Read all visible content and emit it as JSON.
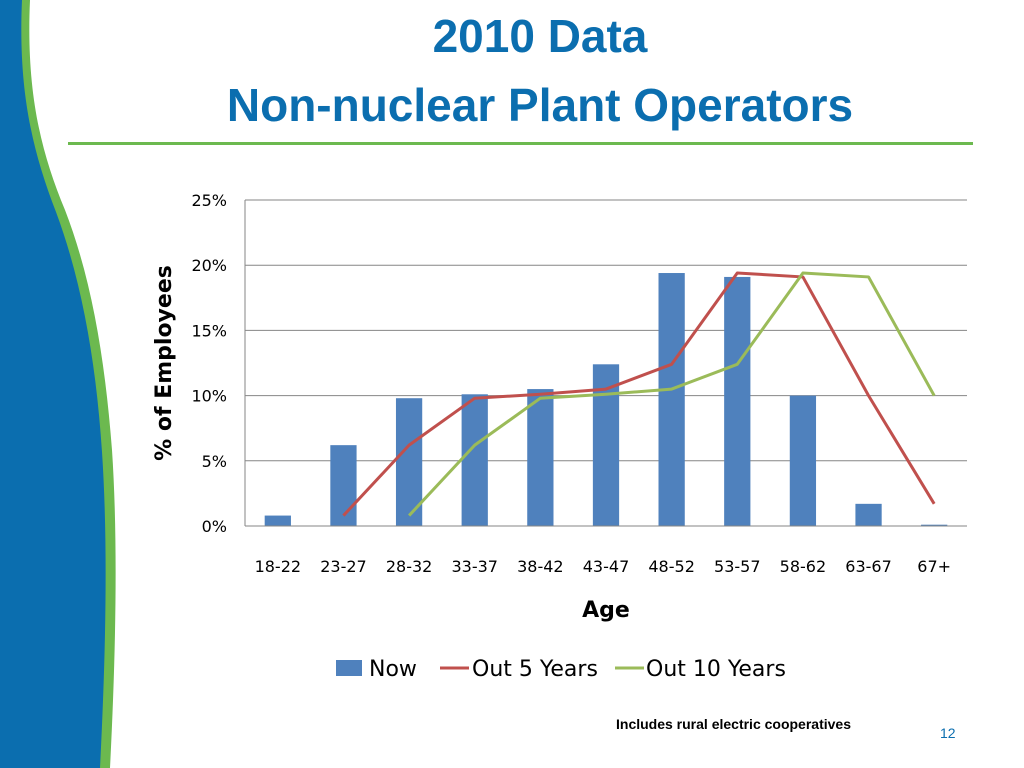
{
  "slide": {
    "title_line1": "2010 Data",
    "title_line2": "Non-nuclear Plant Operators",
    "footnote": "Includes rural electric cooperatives",
    "page_number": "12",
    "colors": {
      "title": "#0B6EAF",
      "rule": "#6CB94F",
      "side_blue": "#0B6EAF",
      "side_green": "#6CB94F"
    }
  },
  "chart_data": {
    "type": "bar",
    "title": "",
    "xlabel": "Age",
    "ylabel": "% of Employees",
    "categories": [
      "18-22",
      "23-27",
      "28-32",
      "33-37",
      "38-42",
      "43-47",
      "48-52",
      "53-57",
      "58-62",
      "63-67",
      "67+"
    ],
    "ylim": [
      0,
      25
    ],
    "yticks": [
      "0%",
      "5%",
      "10%",
      "15%",
      "20%",
      "25%"
    ],
    "grid": true,
    "legend_position": "bottom",
    "series": [
      {
        "name": "Now",
        "type": "bar",
        "color": "#4F81BD",
        "values": [
          0.8,
          6.2,
          9.8,
          10.1,
          10.5,
          12.4,
          19.4,
          19.1,
          10.0,
          1.7,
          0.1
        ]
      },
      {
        "name": "Out 5 Years",
        "type": "line",
        "color": "#C0504D",
        "values": [
          null,
          0.8,
          6.2,
          9.8,
          10.1,
          10.5,
          12.4,
          19.4,
          19.1,
          10.0,
          1.7
        ]
      },
      {
        "name": "Out 10 Years",
        "type": "line",
        "color": "#9BBB59",
        "values": [
          null,
          null,
          0.8,
          6.2,
          9.8,
          10.1,
          10.5,
          12.4,
          19.4,
          19.1,
          10.0
        ]
      }
    ]
  }
}
